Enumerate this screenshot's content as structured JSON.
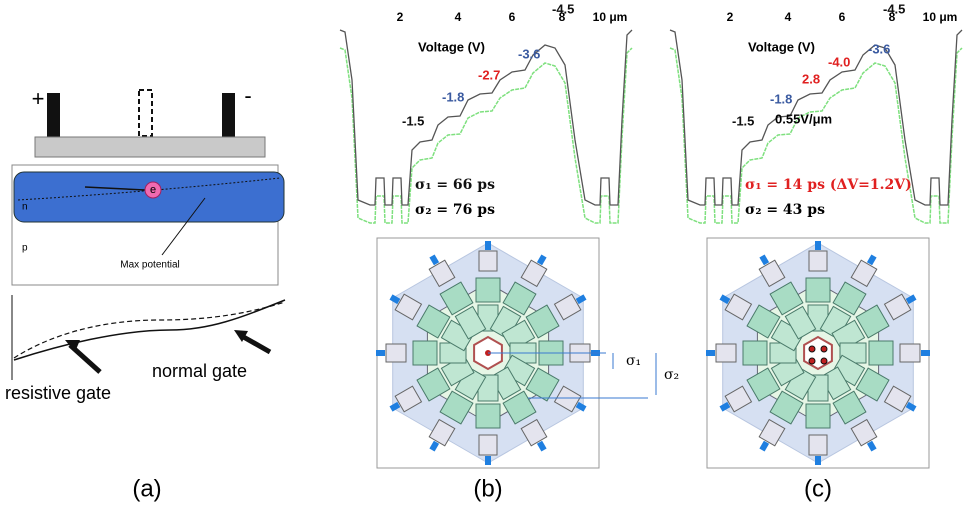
{
  "panel_a": {
    "label": "(a)",
    "plus": "+",
    "minus": "-",
    "electron": "e",
    "n_region": "n",
    "p_region": "p",
    "max_potential": "Max potential",
    "normal_gate": "normal gate",
    "resistive_gate": "resistive gate"
  },
  "panel_b": {
    "label": "(b)",
    "axis_ticks": [
      "2",
      "4",
      "6",
      "8",
      "10 μm"
    ],
    "voltage_title": "Voltage (V)",
    "voltages": [
      "-1.5",
      "-1.8",
      "-2.7",
      "-3.6",
      "-4.5"
    ],
    "sigma1": "σ₁ = 66 ps",
    "sigma2": "σ₂ = 76 ps",
    "diagram_sigma1": "σ₁",
    "diagram_sigma2": "σ₂"
  },
  "panel_c": {
    "label": "(c)",
    "axis_ticks": [
      "2",
      "4",
      "6",
      "8",
      "10 μm"
    ],
    "voltage_title": "Voltage (V)",
    "voltages": [
      "-1.5",
      "-1.8",
      "2.8",
      "-4.0",
      "-3.6",
      "-4.5"
    ],
    "field": "0.55V/μm",
    "sigma1": "σ₁ = 14 ps (ΔV=1.2V)",
    "sigma2": "σ₂ = 43 ps"
  }
}
